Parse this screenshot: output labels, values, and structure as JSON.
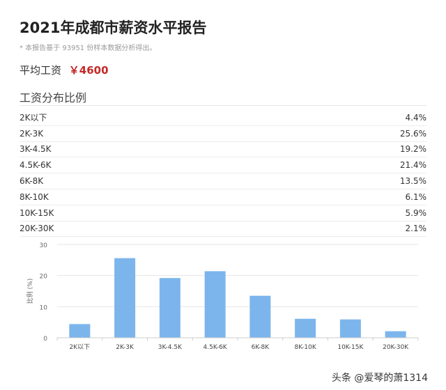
{
  "header": {
    "title": "2021年成都市薪资水平报告",
    "note": "* 本报告基于 93951 份样本数据分析得出。"
  },
  "average": {
    "label": "平均工资",
    "value": "￥4600",
    "value_color": "#c62828"
  },
  "distribution": {
    "section_title": "工资分布比例",
    "rows": [
      {
        "range": "2K以下",
        "pct": "4.4%"
      },
      {
        "range": "2K-3K",
        "pct": "25.6%"
      },
      {
        "range": "3K-4.5K",
        "pct": "19.2%"
      },
      {
        "range": "4.5K-6K",
        "pct": "21.4%"
      },
      {
        "range": "6K-8K",
        "pct": "13.5%"
      },
      {
        "range": "8K-10K",
        "pct": "6.1%"
      },
      {
        "range": "10K-15K",
        "pct": "5.9%"
      },
      {
        "range": "20K-30K",
        "pct": "2.1%"
      }
    ]
  },
  "chart_data": {
    "type": "bar",
    "categories": [
      "2K以下",
      "2K-3K",
      "3K-4.5K",
      "4.5K-6K",
      "6K-8K",
      "8K-10K",
      "10K-15K",
      "20K-30K"
    ],
    "values": [
      4.4,
      25.6,
      19.2,
      21.4,
      13.5,
      6.1,
      5.9,
      2.1
    ],
    "ylabel": "比例 (%)",
    "ylim": [
      0,
      30
    ],
    "yticks": [
      0,
      10,
      20,
      30
    ],
    "bar_color": "#7cb5ec",
    "grid": true
  },
  "watermark": "头条 @爱琴的萧1314"
}
